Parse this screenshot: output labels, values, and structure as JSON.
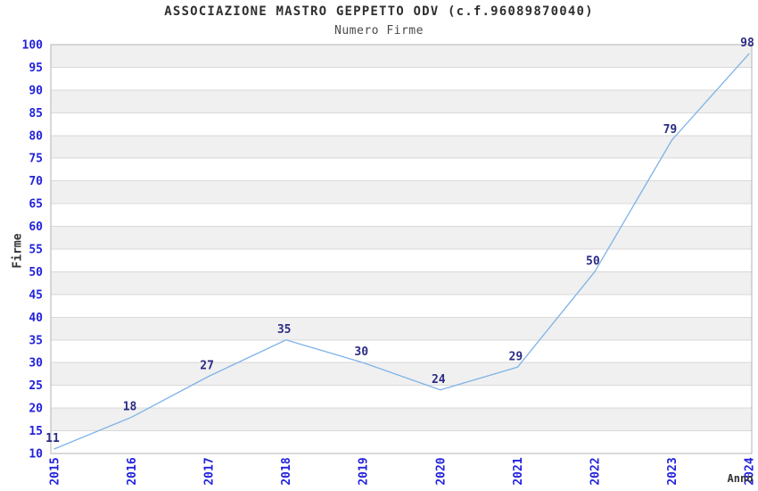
{
  "chart_data": {
    "type": "line",
    "title": "ASSOCIAZIONE MASTRO GEPPETTO ODV (c.f.96089870040)",
    "subtitle": "Numero Firme",
    "xlabel": "Anno",
    "ylabel": "Firme",
    "categories": [
      "2015",
      "2016",
      "2017",
      "2018",
      "2019",
      "2020",
      "2021",
      "2022",
      "2023",
      "2024"
    ],
    "series": [
      {
        "name": "Numero Firme",
        "values": [
          11,
          18,
          27,
          35,
          30,
          24,
          29,
          50,
          79,
          98
        ]
      }
    ],
    "ylim": [
      10,
      100
    ],
    "ytick_step": 5,
    "grid": "horizontal",
    "bands": "alternating-5-unit-horizontal",
    "legend": "none",
    "point_labels_visible": true,
    "colors": {
      "background": "#ffffff",
      "line": "#7fb2e8",
      "tick_label": "#2222dd",
      "point_label": "#2b2b85",
      "band_fill": "#f0f0f0",
      "gridline": "#d9d9d9",
      "plot_border": "#b3b3b3",
      "title_text": "#2f2f2f",
      "axis_title_text": "#333333"
    }
  }
}
